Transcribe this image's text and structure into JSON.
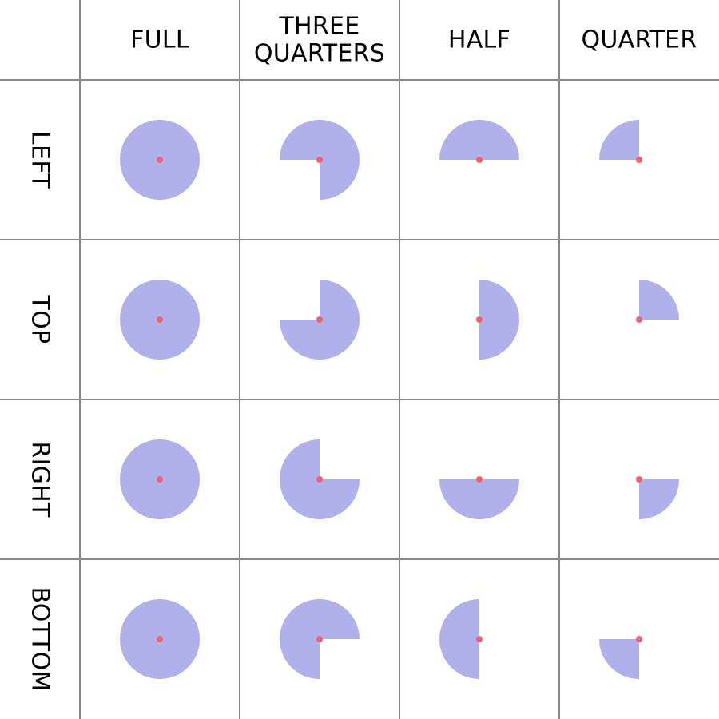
{
  "columns": [
    {
      "lines": [
        "FULL"
      ],
      "fraction": 1.0
    },
    {
      "lines": [
        "THREE",
        "QUARTERS"
      ],
      "fraction": 0.75
    },
    {
      "lines": [
        "HALF"
      ],
      "fraction": 0.5
    },
    {
      "lines": [
        "QUARTER"
      ],
      "fraction": 0.25
    }
  ],
  "rows": [
    {
      "label": "LEFT",
      "start_deg": 180
    },
    {
      "label": "TOP",
      "start_deg": 90
    },
    {
      "label": "RIGHT",
      "start_deg": 0
    },
    {
      "label": "BOTTOM",
      "start_deg": 270
    }
  ],
  "colors": {
    "fill": "#b0b0ea",
    "center_dot": "#f06270",
    "grid": "#8a8a8a",
    "text": "#000000"
  }
}
